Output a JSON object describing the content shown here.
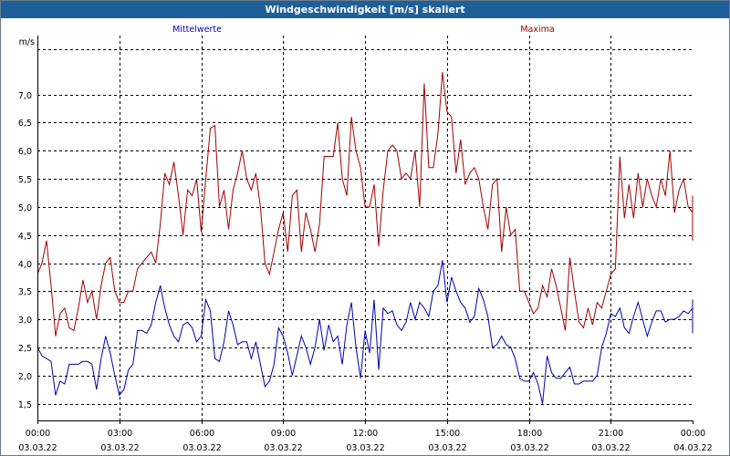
{
  "window": {
    "title": "Windgeschwindigkeit [m/s] skaliert"
  },
  "colors": {
    "mean": "#0000b4",
    "max": "#a00000",
    "grid": "#000000",
    "title_bg": "#1f5f99"
  },
  "chart_data": {
    "type": "line",
    "title": "Windgeschwindigkeit [m/s] skaliert",
    "ylabel": "m/s",
    "ylim": [
      1.2,
      8.05
    ],
    "xlim_hours": [
      0,
      24
    ],
    "yticks": [
      "1,5",
      "2,0",
      "2,5",
      "3,0",
      "3,5",
      "4,0",
      "4,5",
      "5,0",
      "5,5",
      "6,0",
      "6,5",
      "7,0"
    ],
    "ytick_values": [
      1.5,
      2.0,
      2.5,
      3.0,
      3.5,
      4.0,
      4.5,
      5.0,
      5.5,
      6.0,
      6.5,
      7.0
    ],
    "xticks": [
      {
        "time": "00:00",
        "date": "03.03.22"
      },
      {
        "time": "03:00",
        "date": "03.03.22"
      },
      {
        "time": "06:00",
        "date": "03.03.22"
      },
      {
        "time": "09:00",
        "date": "03.03.22"
      },
      {
        "time": "12:00",
        "date": "03.03.22"
      },
      {
        "time": "15:00",
        "date": "03.03.22"
      },
      {
        "time": "18:00",
        "date": "03.03.22"
      },
      {
        "time": "21:00",
        "date": "03.03.22"
      },
      {
        "time": "00:00",
        "date": "04.03.22"
      }
    ],
    "xtick_hours": [
      0,
      3,
      6,
      9,
      12,
      15,
      18,
      21,
      24
    ],
    "grid": true,
    "series": [
      {
        "name": "Mittelwerte",
        "color": "#0000b4",
        "sample_interval_hours": 0.1667,
        "values": [
          2.5,
          2.35,
          2.3,
          2.25,
          1.65,
          1.9,
          1.85,
          2.2,
          2.2,
          2.2,
          2.25,
          2.25,
          2.2,
          1.75,
          2.3,
          2.7,
          2.4,
          2.0,
          1.65,
          1.75,
          2.1,
          2.2,
          2.8,
          2.8,
          2.75,
          2.9,
          3.3,
          3.6,
          3.2,
          2.9,
          2.7,
          2.6,
          2.9,
          2.95,
          2.85,
          2.6,
          2.7,
          3.35,
          3.15,
          2.3,
          2.25,
          2.6,
          3.15,
          2.9,
          2.55,
          2.6,
          2.6,
          2.3,
          2.6,
          2.2,
          1.8,
          1.9,
          2.2,
          2.85,
          2.7,
          2.4,
          2.0,
          2.35,
          2.7,
          2.5,
          2.2,
          2.5,
          3.0,
          2.45,
          2.9,
          2.6,
          2.7,
          2.2,
          2.9,
          3.3,
          2.5,
          1.95,
          2.8,
          2.4,
          3.35,
          2.1,
          3.2,
          3.1,
          3.15,
          2.9,
          2.8,
          2.95,
          3.3,
          3.0,
          3.3,
          3.2,
          3.05,
          3.5,
          3.6,
          4.05,
          3.3,
          3.75,
          3.5,
          3.3,
          3.2,
          2.95,
          3.05,
          3.55,
          3.35,
          3.05,
          2.5,
          2.55,
          2.7,
          2.55,
          2.5,
          2.3,
          1.95,
          1.9,
          1.9,
          2.05,
          1.85,
          1.5,
          2.35,
          2.05,
          1.95,
          1.95,
          2.05,
          2.15,
          1.85,
          1.85,
          1.9,
          1.9,
          1.9,
          2.0,
          2.5,
          2.75,
          3.1,
          3.05,
          3.2,
          2.85,
          2.75,
          3.05,
          3.3,
          3.0,
          2.7,
          2.95,
          3.15,
          3.15,
          2.95,
          3.0,
          3.0,
          3.05,
          3.15,
          3.1,
          3.2,
          3.15,
          3.35,
          3.0,
          2.9,
          2.75,
          2.85
        ]
      },
      {
        "name": "Maxima",
        "color": "#a00000",
        "sample_interval_hours": 0.1667,
        "values": [
          3.8,
          4.0,
          4.4,
          3.6,
          2.7,
          3.1,
          3.2,
          2.85,
          2.8,
          3.2,
          3.7,
          3.3,
          3.5,
          3.0,
          3.6,
          4.0,
          4.1,
          3.5,
          3.3,
          3.3,
          3.5,
          3.5,
          3.9,
          4.0,
          4.1,
          4.2,
          4.0,
          4.7,
          5.6,
          5.4,
          5.8,
          5.2,
          4.5,
          5.3,
          5.2,
          5.5,
          4.55,
          5.5,
          6.4,
          6.45,
          5.0,
          5.3,
          4.6,
          5.3,
          5.6,
          6.0,
          5.5,
          5.3,
          5.6,
          5.0,
          4.0,
          3.8,
          4.2,
          4.6,
          4.9,
          4.2,
          5.2,
          5.3,
          4.2,
          4.9,
          4.6,
          4.2,
          4.7,
          5.9,
          5.9,
          5.9,
          6.5,
          5.5,
          5.2,
          6.6,
          6.0,
          5.7,
          5.0,
          5.0,
          5.4,
          4.3,
          5.3,
          6.0,
          6.1,
          6.0,
          5.5,
          5.6,
          5.5,
          6.0,
          5.0,
          7.2,
          5.7,
          5.7,
          6.3,
          7.4,
          6.7,
          6.6,
          5.6,
          6.2,
          5.4,
          5.6,
          5.7,
          5.5,
          5.0,
          4.6,
          5.4,
          5.5,
          4.2,
          5.0,
          4.5,
          4.6,
          3.5,
          3.5,
          3.3,
          3.1,
          3.2,
          3.6,
          3.4,
          3.9,
          3.6,
          3.2,
          2.8,
          4.1,
          3.5,
          2.95,
          2.85,
          3.2,
          2.9,
          3.3,
          3.2,
          3.5,
          3.8,
          3.9,
          5.9,
          4.8,
          5.4,
          4.8,
          5.6,
          5.0,
          5.5,
          5.2,
          5.0,
          5.5,
          5.2,
          6.0,
          4.9,
          5.3,
          5.5,
          5.0,
          4.9,
          4.5,
          4.4,
          4.6,
          4.9,
          5.2,
          4.5,
          4.5,
          4.7
        ]
      }
    ]
  }
}
